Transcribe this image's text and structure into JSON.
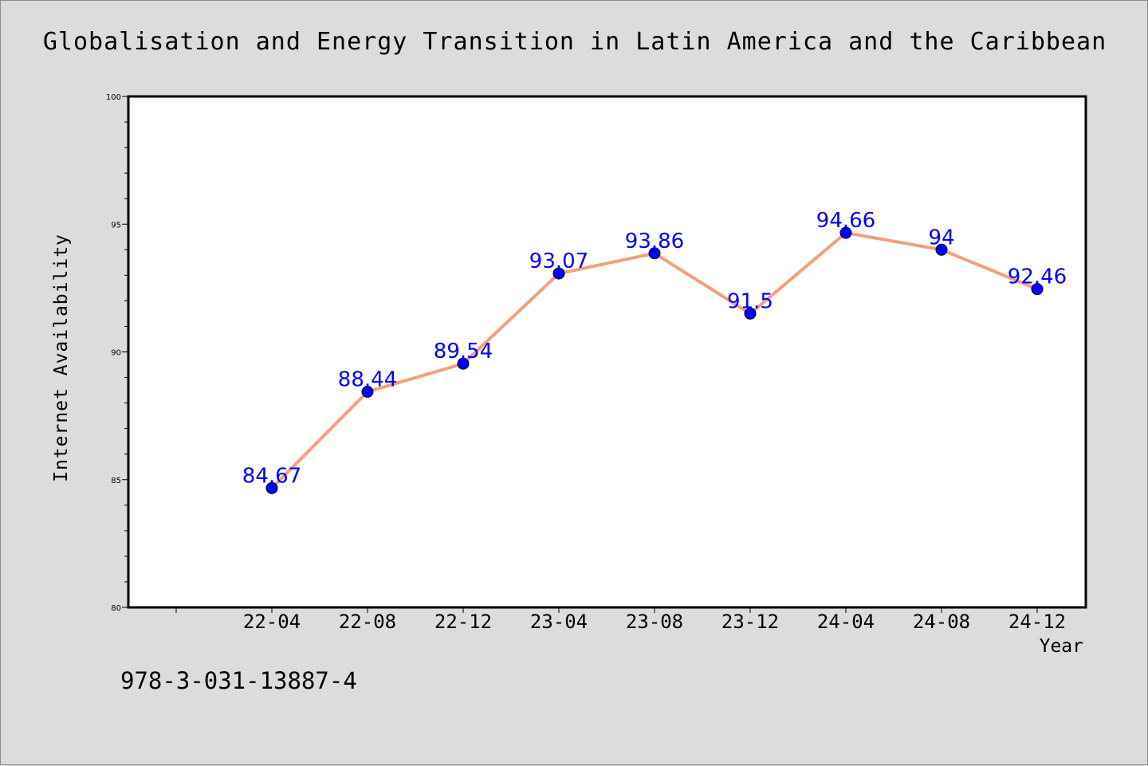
{
  "chart_data": {
    "type": "line",
    "title": "Globalisation and Energy Transition in Latin America and the Caribbean",
    "xlabel": "Year",
    "ylabel": "Internet Availability",
    "categories": [
      "22-04",
      "22-08",
      "22-12",
      "23-04",
      "23-08",
      "23-12",
      "24-04",
      "24-08",
      "24-12"
    ],
    "series": [
      {
        "values": [
          84.67,
          88.44,
          89.54,
          93.07,
          93.86,
          91.5,
          94.66,
          94,
          92.46
        ],
        "data_labels": [
          "84.67",
          "88.44",
          "89.54",
          "93.07",
          "93.86",
          "91.5",
          "94.66",
          "94",
          "92.46"
        ]
      }
    ],
    "ylim": [
      80,
      100
    ],
    "y_ticks": [
      "80",
      "85",
      "90",
      "95",
      "100"
    ],
    "grid": false,
    "line_color": "#f4a07c",
    "marker_color": "#0000ff",
    "label_color": "#0000ff"
  },
  "footer": {
    "isbn": "978-3-031-13887-4"
  }
}
